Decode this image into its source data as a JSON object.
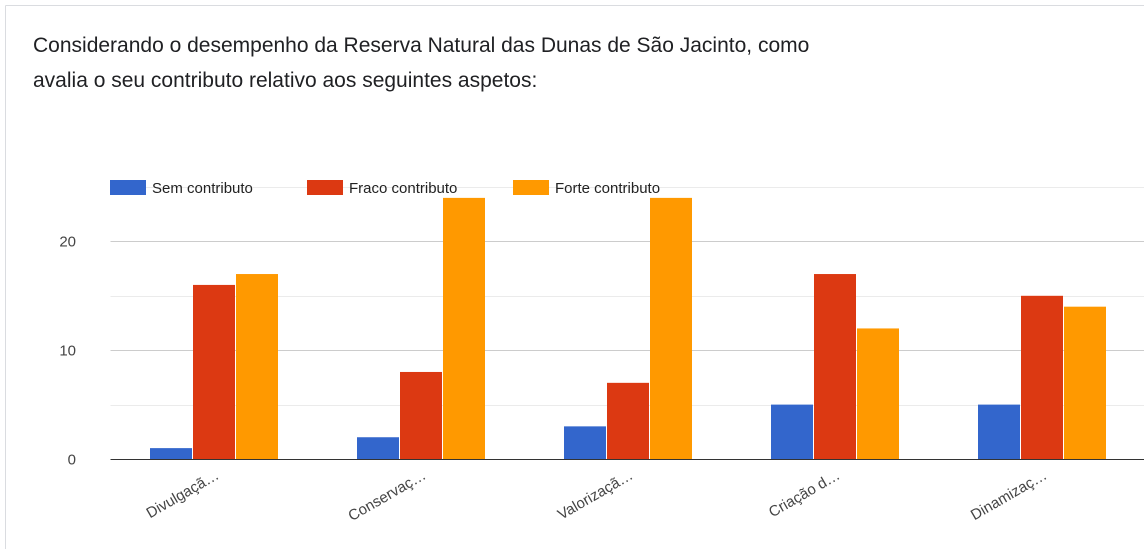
{
  "chart_data": {
    "type": "bar",
    "title": [
      "Considerando o desempenho da Reserva Natural das Dunas de São Jacinto, como",
      "avalia o seu contributo relativo aos seguintes aspetos:"
    ],
    "categories": [
      "Divulgaçã…",
      "Conservaç…",
      "Valorizaçã…",
      "Criação d…",
      "Dinamizaç…"
    ],
    "series": [
      {
        "name": "Sem contributo",
        "color": "#3366cc",
        "values": [
          1,
          2,
          3,
          5,
          5
        ]
      },
      {
        "name": "Fraco contributo",
        "color": "#dc3912",
        "values": [
          16,
          8,
          7,
          17,
          15
        ]
      },
      {
        "name": "Forte contributo",
        "color": "#ff9900",
        "values": [
          17,
          24,
          24,
          12,
          14
        ]
      }
    ],
    "ylim": [
      0,
      25
    ],
    "yticks": [
      0,
      10,
      20
    ],
    "minor_yticks": [
      5,
      15,
      25
    ],
    "grid": true,
    "legend": "top"
  }
}
